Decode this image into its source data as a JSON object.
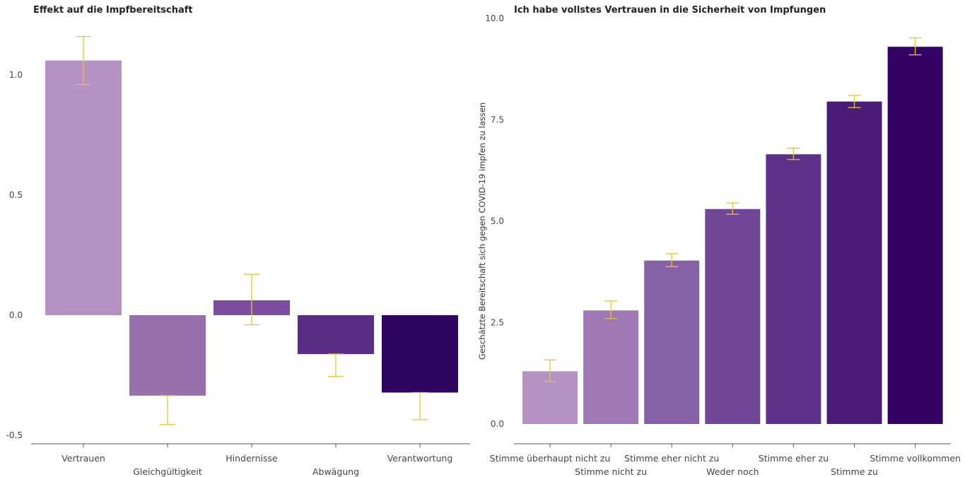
{
  "chart_data": [
    {
      "type": "bar",
      "title": "Effekt auf die Impfbereitschaft",
      "categories": [
        "Vertrauen",
        "Gleichgültigkeit",
        "Hindernisse",
        "Abwägung",
        "Verantwortung"
      ],
      "values": [
        1.06,
        -0.335,
        0.062,
        -0.162,
        -0.322
      ],
      "error_low": [
        0.96,
        -0.455,
        -0.04,
        -0.255,
        -0.435
      ],
      "error_high": [
        1.16,
        -0.335,
        0.17,
        -0.162,
        -0.322
      ],
      "yticks": [
        "1.0",
        "0.5",
        "0.0",
        "-0.5"
      ],
      "ylim": [
        -0.53,
        1.2
      ],
      "xlabel": "",
      "ylabel": "",
      "colors": [
        "#b592c4",
        "#9570ad",
        "#7d4ea0",
        "#5a2d86",
        "#2f0763"
      ],
      "error_color": "#e6c63a",
      "grid": false
    },
    {
      "type": "bar",
      "title": "Ich habe vollstes Vertrauen in die Sicherheit von Impfungen",
      "categories": [
        "Stimme überhaupt nicht zu",
        "Stimme nicht zu",
        "Stimme eher nicht zu",
        "Weder noch",
        "Stimme eher zu",
        "Stimme zu",
        "Stimme vollkommen"
      ],
      "values": [
        1.3,
        2.8,
        4.03,
        5.3,
        6.65,
        7.95,
        9.3
      ],
      "error_low": [
        1.05,
        2.6,
        3.88,
        5.17,
        6.52,
        7.8,
        9.1
      ],
      "error_high": [
        1.58,
        3.03,
        4.2,
        5.45,
        6.8,
        8.1,
        9.52
      ],
      "yticks": [
        "10.0",
        "7.5",
        "5.0",
        "2.5",
        "0.0"
      ],
      "ylim": [
        0,
        10
      ],
      "xlabel": "",
      "ylabel": "Geschätzte Bereitschaft sich gegen COVID-19 impfen zu lassen",
      "colors": [
        "#b592c4",
        "#9e79b5",
        "#8661a6",
        "#714799",
        "#5d3189",
        "#4a1c78",
        "#330463"
      ],
      "error_color": "#e6c63a",
      "grid": false
    }
  ]
}
